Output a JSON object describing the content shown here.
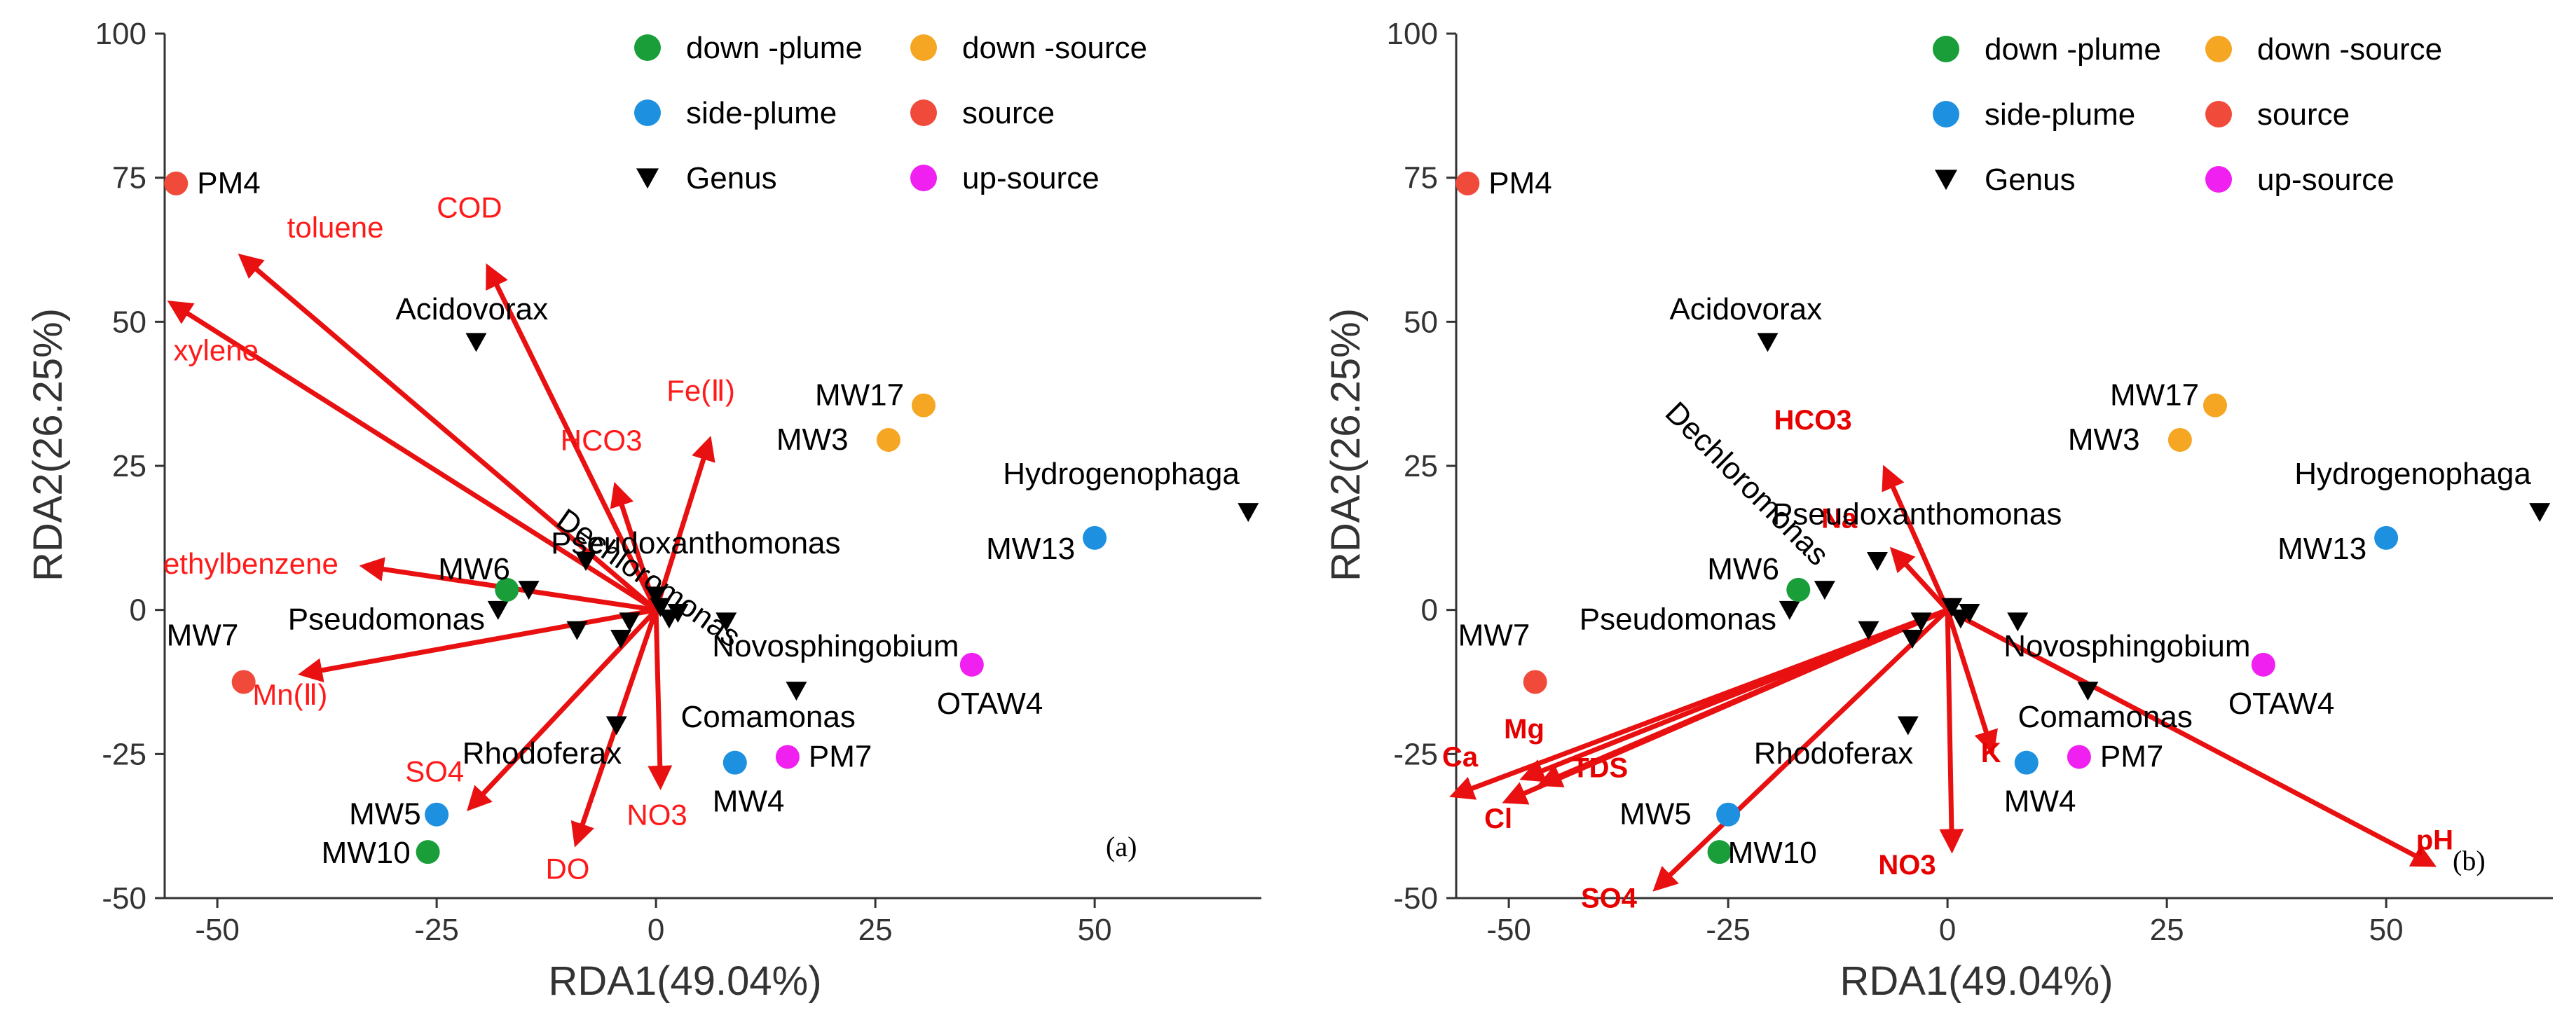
{
  "colors": {
    "down-plume": "#1a9e3a",
    "down-source": "#f5a623",
    "side-plume": "#1e90e0",
    "source": "#f04a3a",
    "up-source": "#f020f0",
    "genus": "#000000",
    "arrow": "#e81010"
  },
  "chart_data": [
    {
      "type": "scatter",
      "panel_label": "(a)",
      "xlabel": "RDA1(49.04%)",
      "ylabel": "RDA2(26.25%)",
      "xlim": [
        -56,
        69
      ],
      "ylim": [
        -50,
        100
      ],
      "xticks": [
        "-50",
        "-25",
        "0",
        "25",
        "50"
      ],
      "yticks": [
        "-50",
        "-25",
        "0",
        "25",
        "50",
        "75",
        "100"
      ],
      "legend": [
        {
          "label": "down -plume",
          "group": "down-plume",
          "marker": "circle"
        },
        {
          "label": "down -source",
          "group": "down-source",
          "marker": "circle"
        },
        {
          "label": "side-plume",
          "group": "side-plume",
          "marker": "circle"
        },
        {
          "label": "source",
          "group": "source",
          "marker": "circle"
        },
        {
          "label": "Genus",
          "group": "genus",
          "marker": "triangle"
        },
        {
          "label": "up-source",
          "group": "up-source",
          "marker": "circle"
        }
      ],
      "sites": [
        {
          "label": "PM4",
          "group": "source",
          "x": -54.7,
          "y": 74
        },
        {
          "label": "MW7",
          "group": "source",
          "x": -47,
          "y": -12.5
        },
        {
          "label": "MW6",
          "group": "down-plume",
          "x": -17,
          "y": 3.5
        },
        {
          "label": "MW5",
          "group": "side-plume",
          "x": -25,
          "y": -35.5
        },
        {
          "label": "MW10",
          "group": "down-plume",
          "x": -26,
          "y": -42
        },
        {
          "label": "MW4",
          "group": "side-plume",
          "x": 9,
          "y": -26.5
        },
        {
          "label": "PM7",
          "group": "up-source",
          "x": 15,
          "y": -25.5
        },
        {
          "label": "MW17",
          "group": "down-source",
          "x": 30.5,
          "y": 35.5
        },
        {
          "label": "MW3",
          "group": "down-source",
          "x": 26.5,
          "y": 29.5
        },
        {
          "label": "MW13",
          "group": "side-plume",
          "x": 50,
          "y": 12.5
        },
        {
          "label": "OTAW4",
          "group": "up-source",
          "x": 36,
          "y": -9.5
        }
      ],
      "genera": [
        {
          "label": "Acidovorax",
          "x": -20.5,
          "y": 46.5
        },
        {
          "label": "Dechloromonas",
          "x": -8,
          "y": 8.5
        },
        {
          "label": "Pseudoxanthomonas",
          "x": 0,
          "y": 2.5
        },
        {
          "label": "Pseudomonas",
          "x": -18,
          "y": 0
        },
        {
          "label": "Novosphingobium",
          "x": 8,
          "y": -2
        },
        {
          "label": "Comamonas",
          "x": 16,
          "y": -14
        },
        {
          "label": "Rhodoferax",
          "x": -4.5,
          "y": -20
        },
        {
          "label": "Hydrogenophaga",
          "x": 67.5,
          "y": 17
        },
        {
          "label": "",
          "x": -14.5,
          "y": 3.5
        },
        {
          "label": "",
          "x": -9,
          "y": -3.5
        },
        {
          "label": "",
          "x": -4,
          "y": -5
        },
        {
          "label": "",
          "x": -3,
          "y": -2
        },
        {
          "label": "",
          "x": 0.5,
          "y": 0.5
        },
        {
          "label": "",
          "x": 1.5,
          "y": -1.5
        },
        {
          "label": "",
          "x": 2.5,
          "y": -0.5
        }
      ],
      "env_vectors": [
        {
          "label": "toluene",
          "x": -47,
          "y": 61
        },
        {
          "label": "COD",
          "x": -19,
          "y": 59
        },
        {
          "label": "xylene",
          "x": -55,
          "y": 53
        },
        {
          "label": "Fe(Ⅱ)",
          "x": 6,
          "y": 29
        },
        {
          "label": "HCO3",
          "x": -4.5,
          "y": 21
        },
        {
          "label": "ethylbenzene",
          "x": -33,
          "y": 7.5
        },
        {
          "label": "Mn(Ⅱ)",
          "x": -40,
          "y": -11
        },
        {
          "label": "SO4",
          "x": -21,
          "y": -34
        },
        {
          "label": "DO",
          "x": -9,
          "y": -40
        },
        {
          "label": "NO3",
          "x": 0.5,
          "y": -30
        }
      ]
    },
    {
      "type": "scatter",
      "panel_label": "(b)",
      "xlabel": "RDA1(49.04%)",
      "ylabel": "RDA2(26.25%)",
      "xlim": [
        -56,
        69
      ],
      "ylim": [
        -50,
        100
      ],
      "xticks": [
        "-50",
        "-25",
        "0",
        "25",
        "50"
      ],
      "yticks": [
        "-50",
        "-25",
        "0",
        "25",
        "50",
        "75",
        "100"
      ],
      "legend": [
        {
          "label": "down -plume",
          "group": "down-plume",
          "marker": "circle"
        },
        {
          "label": "down -source",
          "group": "down-source",
          "marker": "circle"
        },
        {
          "label": "side-plume",
          "group": "side-plume",
          "marker": "circle"
        },
        {
          "label": "source",
          "group": "source",
          "marker": "circle"
        },
        {
          "label": "Genus",
          "group": "genus",
          "marker": "triangle"
        },
        {
          "label": "up-source",
          "group": "up-source",
          "marker": "circle"
        }
      ],
      "sites": [
        {
          "label": "PM4",
          "group": "source",
          "x": -54.7,
          "y": 74
        },
        {
          "label": "MW7",
          "group": "source",
          "x": -47,
          "y": -12.5
        },
        {
          "label": "MW6",
          "group": "down-plume",
          "x": -17,
          "y": 3.5
        },
        {
          "label": "MW5",
          "group": "side-plume",
          "x": -25,
          "y": -35.5
        },
        {
          "label": "MW10",
          "group": "down-plume",
          "x": -26,
          "y": -42
        },
        {
          "label": "MW4",
          "group": "side-plume",
          "x": 9,
          "y": -26.5
        },
        {
          "label": "PM7",
          "group": "up-source",
          "x": 15,
          "y": -25.5
        },
        {
          "label": "MW17",
          "group": "down-source",
          "x": 30.5,
          "y": 35.5
        },
        {
          "label": "MW3",
          "group": "down-source",
          "x": 26.5,
          "y": 29.5
        },
        {
          "label": "MW13",
          "group": "side-plume",
          "x": 50,
          "y": 12.5
        },
        {
          "label": "OTAW4",
          "group": "up-source",
          "x": 36,
          "y": -9.5
        }
      ],
      "genera": [
        {
          "label": "Acidovorax",
          "x": -20.5,
          "y": 46.5
        },
        {
          "label": "Dechloromonas",
          "x": -14,
          "y": 3.5
        },
        {
          "label": "Pseudoxanthomonas",
          "x": -8,
          "y": 8.5
        },
        {
          "label": "Pseudomonas",
          "x": -18,
          "y": 0
        },
        {
          "label": "Novosphingobium",
          "x": 8,
          "y": -2
        },
        {
          "label": "Comamonas",
          "x": 16,
          "y": -14
        },
        {
          "label": "Rhodoferax",
          "x": -4.5,
          "y": -20
        },
        {
          "label": "Hydrogenophaga",
          "x": 67.5,
          "y": 17
        },
        {
          "label": "",
          "x": -9,
          "y": -3.5
        },
        {
          "label": "",
          "x": -4,
          "y": -5
        },
        {
          "label": "",
          "x": -3,
          "y": -2
        },
        {
          "label": "",
          "x": 0.5,
          "y": 0.5
        },
        {
          "label": "",
          "x": 1.5,
          "y": -1.5
        },
        {
          "label": "",
          "x": 2.5,
          "y": -0.5
        }
      ],
      "env_vectors": [
        {
          "label": "HCO3",
          "x": -7,
          "y": 24
        },
        {
          "label": "Na",
          "x": -6,
          "y": 10
        },
        {
          "label": "Ca",
          "x": -56,
          "y": -32
        },
        {
          "label": "Mg",
          "x": -48,
          "y": -29
        },
        {
          "label": "TDS",
          "x": -46,
          "y": -30
        },
        {
          "label": "Cl",
          "x": -50,
          "y": -33
        },
        {
          "label": "SO4",
          "x": -33,
          "y": -48
        },
        {
          "label": "NO3",
          "x": 0.5,
          "y": -41
        },
        {
          "label": "K",
          "x": 5,
          "y": -24
        },
        {
          "label": "pH",
          "x": 55,
          "y": -44
        }
      ]
    }
  ]
}
